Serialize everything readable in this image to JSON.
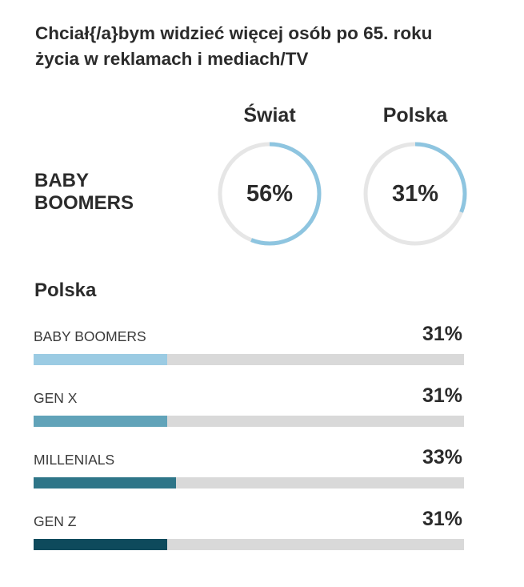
{
  "title_lines": [
    "Chciał{/a}bym widzieć więcej osób po 65. roku",
    "życia w reklamach i mediach/TV"
  ],
  "comparison": {
    "columns": [
      "Świat",
      "Polska"
    ],
    "row_label_lines": [
      "BABY",
      "BOOMERS"
    ],
    "values": [
      "56%",
      "31%"
    ]
  },
  "section_title": "Polska",
  "colors": {
    "donut_arc": "#8ec5e0",
    "donut_track": "#e6e6e6",
    "bar_track": "#d9d9d9",
    "bar_colors": [
      "#9bcbe3",
      "#61a3b9",
      "#2e7588",
      "#0e4a5c"
    ]
  },
  "chart_data": [
    {
      "type": "donut",
      "title": "Chciał{/a}bym widzieć więcej osób po 65. roku życia w reklamach i mediach/TV",
      "row_label": "BABY BOOMERS",
      "categories": [
        "Świat",
        "Polska"
      ],
      "values": [
        56,
        31
      ],
      "labels": [
        "56%",
        "31%"
      ],
      "unit": "%"
    },
    {
      "type": "bar",
      "orientation": "horizontal",
      "title": "Polska",
      "categories": [
        "BABY BOOMERS",
        "GEN X",
        "MILLENIALS",
        "GEN Z"
      ],
      "values": [
        31,
        31,
        33,
        31
      ],
      "labels": [
        "31%",
        "31%",
        "33%",
        "31%"
      ],
      "unit": "%",
      "xlim": [
        0,
        100
      ],
      "grid": false,
      "legend": "none"
    }
  ]
}
